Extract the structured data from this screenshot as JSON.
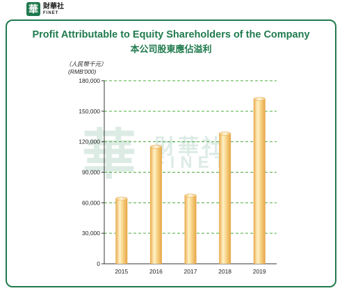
{
  "brand": {
    "logo_glyph": "華",
    "name_cn": "財華社",
    "name_en": "FINET",
    "color": "#1f7a4d"
  },
  "chart_data": {
    "type": "bar",
    "title": "Profit Attributable to Equity Shareholders of the Company",
    "subtitle": "本公司股東應佔溢利",
    "unit_cn": "（人民幣千元）",
    "unit_en": "(RMB'000)",
    "categories": [
      "2015",
      "2016",
      "2017",
      "2018",
      "2019"
    ],
    "values": [
      64000,
      115000,
      67000,
      128000,
      162000
    ],
    "ylim": [
      0,
      180000
    ],
    "yticks": [
      0,
      30000,
      60000,
      90000,
      120000,
      150000,
      180000
    ],
    "ytick_labels": [
      "0",
      "30,000",
      "60,000",
      "90,000",
      "120,000",
      "150,000",
      "180,000"
    ],
    "grid": true,
    "bar_color": "#f3c676",
    "grid_color": "#4aaa3a",
    "title_color": "#1f7a4d"
  }
}
